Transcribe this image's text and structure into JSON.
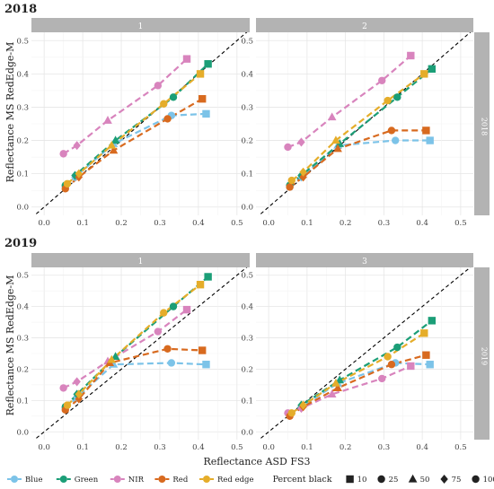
{
  "colors": {
    "Blue": "#7cc3e8",
    "Green": "#1b9e77",
    "NIR": "#d884bd",
    "Red": "#d86a1f",
    "Red edge": "#e5ad2a",
    "strip": "#b3b3b3",
    "grid_major": "#e6e6e6",
    "identity_line": "#000000"
  },
  "chart_data": {
    "type": "scatter",
    "xlabel": "Reflectance ASD FS3",
    "ylabel": "Reflectance MS RedEdge-M",
    "xlim": [
      0,
      0.5
    ],
    "ylim": [
      0,
      0.5
    ],
    "x_ticks": [
      "0.0",
      "0.1",
      "0.2",
      "0.3",
      "0.4",
      "0.5"
    ],
    "y_ticks": [
      "0.0",
      "0.1",
      "0.2",
      "0.3",
      "0.4",
      "0.5"
    ],
    "grid": true,
    "reference_line": "y = x (dashed)",
    "legend": {
      "position": "bottom",
      "color_entries": [
        "Blue",
        "Green",
        "NIR",
        "Red",
        "Red edge"
      ],
      "shape_title": "Percent black",
      "shape_entries": [
        {
          "label": "10",
          "shape": "square"
        },
        {
          "label": "25",
          "shape": "circle"
        },
        {
          "label": "50",
          "shape": "triangle"
        },
        {
          "label": "75",
          "shape": "diamond"
        },
        {
          "label": "100",
          "shape": "circle"
        }
      ]
    },
    "shape_by_percent": {
      "100": "circle",
      "75": "diamond",
      "50": "triangle",
      "25": "circle",
      "10": "square"
    },
    "percent_order": [
      100,
      75,
      50,
      25,
      10
    ],
    "panels": [
      {
        "year": "2018",
        "strip_top": "1",
        "strip_right": "2018",
        "series": [
          {
            "name": "Blue",
            "x": [
              0.055,
              0.08,
              0.18,
              0.33,
              0.42
            ],
            "y": [
              0.06,
              0.09,
              0.19,
              0.275,
              0.28
            ]
          },
          {
            "name": "Green",
            "x": [
              0.055,
              0.08,
              0.185,
              0.335,
              0.425
            ],
            "y": [
              0.065,
              0.095,
              0.2,
              0.33,
              0.43
            ]
          },
          {
            "name": "NIR",
            "x": [
              0.05,
              0.085,
              0.165,
              0.295,
              0.37
            ],
            "y": [
              0.16,
              0.185,
              0.26,
              0.365,
              0.445
            ]
          },
          {
            "name": "Red",
            "x": [
              0.055,
              0.09,
              0.18,
              0.32,
              0.41
            ],
            "y": [
              0.055,
              0.09,
              0.17,
              0.265,
              0.325
            ]
          },
          {
            "name": "Red edge",
            "x": [
              0.06,
              0.09,
              0.175,
              0.31,
              0.405
            ],
            "y": [
              0.07,
              0.1,
              0.185,
              0.31,
              0.4
            ]
          }
        ]
      },
      {
        "year": "2018",
        "strip_top": "2",
        "strip_right": "2018",
        "series": [
          {
            "name": "Blue",
            "x": [
              0.055,
              0.085,
              0.18,
              0.33,
              0.42
            ],
            "y": [
              0.06,
              0.09,
              0.185,
              0.2,
              0.2
            ]
          },
          {
            "name": "Green",
            "x": [
              0.055,
              0.085,
              0.185,
              0.335,
              0.425
            ],
            "y": [
              0.065,
              0.095,
              0.19,
              0.33,
              0.415
            ]
          },
          {
            "name": "NIR",
            "x": [
              0.05,
              0.085,
              0.165,
              0.295,
              0.37
            ],
            "y": [
              0.18,
              0.195,
              0.27,
              0.38,
              0.455
            ]
          },
          {
            "name": "Red",
            "x": [
              0.055,
              0.09,
              0.18,
              0.32,
              0.41
            ],
            "y": [
              0.06,
              0.09,
              0.175,
              0.23,
              0.23
            ]
          },
          {
            "name": "Red edge",
            "x": [
              0.06,
              0.09,
              0.175,
              0.31,
              0.405
            ],
            "y": [
              0.08,
              0.105,
              0.2,
              0.32,
              0.4
            ]
          }
        ]
      },
      {
        "year": "2019",
        "strip_top": "1",
        "strip_right": "2019",
        "series": [
          {
            "name": "Blue",
            "x": [
              0.055,
              0.085,
              0.18,
              0.33,
              0.42
            ],
            "y": [
              0.075,
              0.11,
              0.215,
              0.22,
              0.215
            ]
          },
          {
            "name": "Green",
            "x": [
              0.055,
              0.085,
              0.185,
              0.335,
              0.425
            ],
            "y": [
              0.08,
              0.12,
              0.24,
              0.4,
              0.495
            ]
          },
          {
            "name": "NIR",
            "x": [
              0.05,
              0.085,
              0.165,
              0.295,
              0.37
            ],
            "y": [
              0.14,
              0.16,
              0.225,
              0.32,
              0.39
            ]
          },
          {
            "name": "Red",
            "x": [
              0.055,
              0.09,
              0.17,
              0.32,
              0.41
            ],
            "y": [
              0.07,
              0.105,
              0.22,
              0.265,
              0.26
            ]
          },
          {
            "name": "Red edge",
            "x": [
              0.06,
              0.09,
              0.175,
              0.31,
              0.405
            ],
            "y": [
              0.085,
              0.12,
              0.23,
              0.38,
              0.47
            ]
          }
        ]
      },
      {
        "year": "2019",
        "strip_top": "3",
        "strip_right": "2019",
        "series": [
          {
            "name": "Blue",
            "x": [
              0.055,
              0.085,
              0.18,
              0.33,
              0.42
            ],
            "y": [
              0.055,
              0.08,
              0.155,
              0.22,
              0.215
            ]
          },
          {
            "name": "Green",
            "x": [
              0.055,
              0.085,
              0.185,
              0.335,
              0.425
            ],
            "y": [
              0.055,
              0.085,
              0.165,
              0.27,
              0.355
            ]
          },
          {
            "name": "NIR",
            "x": [
              0.05,
              0.085,
              0.165,
              0.295,
              0.37
            ],
            "y": [
              0.06,
              0.075,
              0.12,
              0.17,
              0.21
            ]
          },
          {
            "name": "Red",
            "x": [
              0.055,
              0.09,
              0.18,
              0.32,
              0.41
            ],
            "y": [
              0.05,
              0.08,
              0.14,
              0.215,
              0.245
            ]
          },
          {
            "name": "Red edge",
            "x": [
              0.06,
              0.09,
              0.175,
              0.31,
              0.405
            ],
            "y": [
              0.06,
              0.085,
              0.155,
              0.24,
              0.315
            ]
          }
        ]
      }
    ]
  },
  "figure": {
    "year_labels": [
      "2018",
      "2019"
    ]
  }
}
